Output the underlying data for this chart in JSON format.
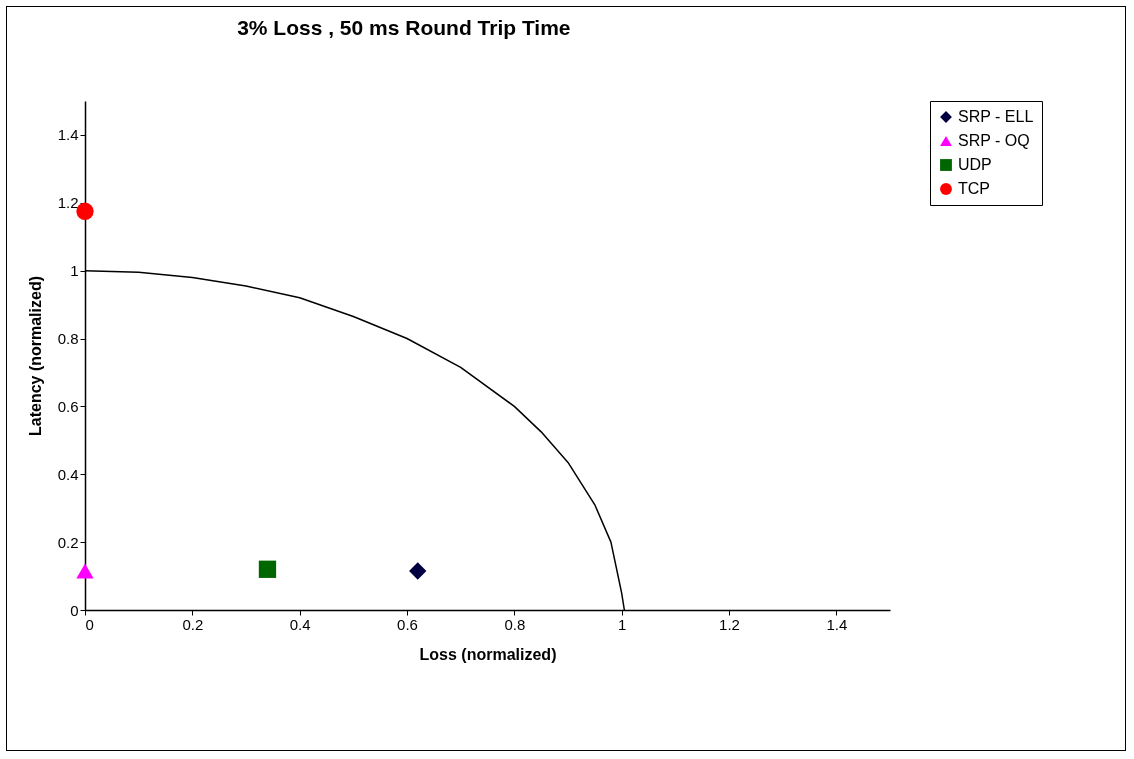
{
  "chart_data": {
    "type": "scatter",
    "title": "3% Loss , 50 ms Round Trip Time",
    "xlabel": "Loss (normalized)",
    "ylabel": "Latency (normalized)",
    "xlim": [
      0,
      1.5
    ],
    "xticks": [
      0,
      0.2,
      0.4,
      0.6,
      0.8,
      1,
      1.2,
      1.4
    ],
    "ylim": [
      0,
      1.5
    ],
    "yticks": [
      0,
      0.2,
      0.4,
      0.6,
      0.8,
      1,
      1.2,
      1.4
    ],
    "grid": false,
    "legend": "right",
    "series": [
      {
        "name": "SRP - ELL",
        "color": "#000040",
        "marker": "diamond",
        "x": [
          0.62
        ],
        "values": [
          0.115
        ]
      },
      {
        "name": "SRP - OQ",
        "color": "#ff00ff",
        "marker": "triangle",
        "x": [
          0
        ],
        "values": [
          0.115
        ]
      },
      {
        "name": "UDP",
        "color": "#006600",
        "marker": "square",
        "x": [
          0.34
        ],
        "values": [
          0.12
        ]
      },
      {
        "name": "TCP",
        "color": "#ff0000",
        "marker": "circle",
        "x": [
          0
        ],
        "values": [
          1.175
        ]
      },
      {
        "type": "line",
        "color": "#000000",
        "marker": "none",
        "line_style": "solid",
        "x": [
          0,
          0.1,
          0.2,
          0.3,
          0.4,
          0.5,
          0.6,
          0.7,
          0.8,
          0.85,
          0.9,
          0.95,
          0.98,
          1,
          1.005
        ],
        "values": [
          1,
          0.995,
          0.98,
          0.955,
          0.92,
          0.865,
          0.8,
          0.715,
          0.6,
          0.525,
          0.435,
          0.31,
          0.2,
          0.05,
          0
        ]
      }
    ]
  }
}
